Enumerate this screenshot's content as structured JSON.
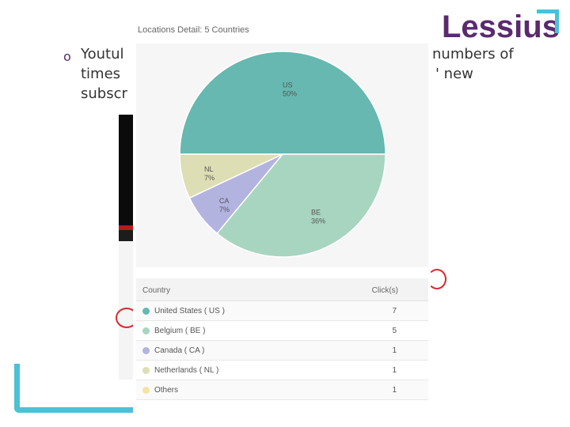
{
  "logo": {
    "text": "Lessius"
  },
  "slide": {
    "bullet": "o",
    "line1": "Youtul",
    "line2": "times",
    "line3": "subscr",
    "right1": "numbers of",
    "right2": "' new"
  },
  "panel": {
    "title": "Locations Detail: 5 Countries"
  },
  "table": {
    "col_country": "Country",
    "col_clicks": "Click(s)",
    "rows": [
      {
        "country": "United States ( US )",
        "clicks": "7",
        "color": "#66b8b0"
      },
      {
        "country": "Belgium ( BE )",
        "clicks": "5",
        "color": "#a8d5c0"
      },
      {
        "country": "Canada ( CA )",
        "clicks": "1",
        "color": "#b3b3e0"
      },
      {
        "country": "Netherlands ( NL )",
        "clicks": "1",
        "color": "#dedeb4"
      },
      {
        "country": "Others",
        "clicks": "1",
        "color": "#f5e3a3"
      }
    ]
  },
  "chart_data": {
    "type": "pie",
    "title": "Locations Detail: 5 Countries",
    "slices": [
      {
        "label": "US",
        "pct_label": "50%",
        "value": 50,
        "color": "#66b8b0"
      },
      {
        "label": "BE",
        "pct_label": "36%",
        "value": 36,
        "color": "#a8d5c0"
      },
      {
        "label": "CA",
        "pct_label": "7%",
        "value": 7,
        "color": "#b3b3e0"
      },
      {
        "label": "NL",
        "pct_label": "7%",
        "value": 7,
        "color": "#dedeb4"
      }
    ]
  },
  "colors": {
    "brand": "#5a2a6e",
    "accent": "#4bc1d8",
    "annotation": "#d9272e"
  }
}
